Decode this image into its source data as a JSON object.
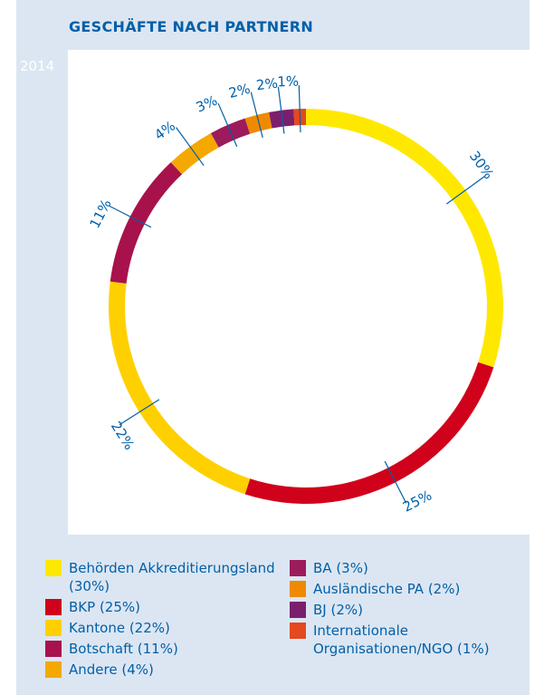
{
  "chart_data": {
    "type": "pie",
    "title": "GESCHÄFTE NACH PARTNERN",
    "subtitle": "2014",
    "categories": [
      "Behörden Akkreditierungsland (30%)",
      "BKP (25%)",
      "Kantone (22%)",
      "Botschaft (11%)",
      "Andere (4%)",
      "BA (3%)",
      "Ausländische PA (2%)",
      "BJ (2%)",
      "Internationale Organisationen/NGO (1%)"
    ],
    "values": [
      30,
      25,
      22,
      11,
      4,
      3,
      2,
      2,
      1
    ],
    "value_labels": [
      "30%",
      "25%",
      "22%",
      "11%",
      "4%",
      "3%",
      "2%",
      "2%",
      "1%"
    ],
    "colors": [
      "#ffe800",
      "#d0021b",
      "#ffd000",
      "#a8124c",
      "#f5a800",
      "#9c1b5c",
      "#ef8a00",
      "#7b1f6c",
      "#e4491f"
    ]
  }
}
